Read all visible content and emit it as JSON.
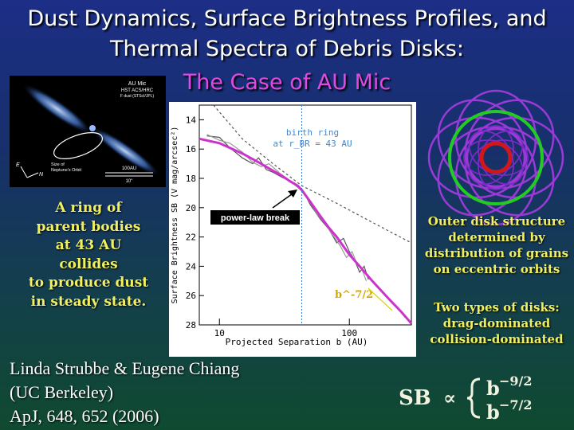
{
  "slide": {
    "title_line1": "Dust Dynamics, Surface Brightness Profiles, and",
    "title_line2": "Thermal Spectra of Debris Disks:",
    "title_line3": "The Case of AU Mic",
    "left_text": [
      "A ring of",
      "parent bodies",
      "at 43 AU",
      "collides",
      "to produce dust",
      "in steady state."
    ],
    "right_text1": [
      "Outer disk structure",
      "determined by",
      "distribution of grains",
      "on eccentric orbits"
    ],
    "right_text2": [
      "Two types of disks:",
      "drag-dominated",
      "collision-dominated"
    ],
    "authors": [
      "Linda Strubbe & Eugene Chiang",
      "(UC Berkeley)",
      "ApJ, 648, 652 (2006)"
    ],
    "formula": {
      "lhs": "SB",
      "prop": "∝",
      "base": "b",
      "exp1": "−9/2",
      "exp2": "−7/2"
    }
  },
  "hst_image": {
    "label1": "AU Mic",
    "label2": "HST ACS/HRC",
    "label3": "F dust (STScI/JPL)",
    "ellipse_label1": "Size of",
    "ellipse_label2": "Neptune's Orbit",
    "scale_au": "100AU",
    "scale_arcsec": "10\"",
    "compass_e": "E",
    "compass_n": "N"
  },
  "chart_data": {
    "type": "line",
    "xlabel": "Projected Separation b (AU)",
    "ylabel": "Surface Brightness SB (V mag/arcsec²)",
    "x_scale": "log",
    "xlim": [
      7,
      300
    ],
    "ylim": [
      28,
      13
    ],
    "x_ticks": [
      10,
      100
    ],
    "y_ticks": [
      14,
      16,
      18,
      20,
      22,
      24,
      26,
      28
    ],
    "annotations": {
      "birth_ring_line1": "birth ring",
      "birth_ring_line2": "at r_BR = 43 AU",
      "break_label": "power-law break",
      "slope_label": "b^-7/2"
    },
    "birth_ring_au": 43,
    "series": [
      {
        "name": "model",
        "color": "#cc33cc",
        "x": [
          7,
          10,
          15,
          20,
          25,
          30,
          35,
          40,
          43,
          50,
          60,
          70,
          80,
          100,
          120,
          150,
          200,
          250,
          300
        ],
        "y": [
          15.3,
          15.6,
          16.3,
          16.9,
          17.4,
          17.8,
          18.2,
          18.5,
          18.8,
          19.6,
          20.6,
          21.4,
          22.0,
          23.2,
          24.0,
          25.0,
          26.2,
          27.1,
          27.9
        ]
      },
      {
        "name": "observed_1",
        "color": "#555555",
        "x": [
          8,
          10,
          12,
          15,
          18,
          20,
          23,
          26,
          30,
          35,
          40,
          45,
          50,
          60,
          70,
          80,
          90,
          100,
          110,
          120,
          130,
          140
        ],
        "y": [
          15.1,
          15.2,
          15.9,
          16.6,
          17.0,
          16.6,
          17.4,
          17.6,
          17.9,
          18.2,
          18.6,
          19.0,
          19.8,
          20.8,
          21.5,
          22.4,
          22.1,
          23.0,
          23.6,
          24.4,
          24.0,
          24.9
        ]
      },
      {
        "name": "observed_2",
        "color": "#999999",
        "x": [
          8,
          10,
          12,
          15,
          18,
          21,
          24,
          28,
          32,
          38,
          43,
          48,
          55,
          65,
          75,
          85,
          95,
          105,
          115,
          125,
          135
        ],
        "y": [
          15.0,
          15.4,
          15.6,
          16.2,
          16.9,
          17.2,
          17.0,
          17.5,
          18.0,
          18.4,
          18.7,
          19.3,
          20.3,
          21.1,
          21.9,
          22.6,
          23.4,
          23.0,
          23.9,
          24.2,
          25.0
        ]
      },
      {
        "name": "upper_powerlaw",
        "color": "#555555",
        "dashed": true,
        "x": [
          9,
          15,
          25,
          43,
          80,
          150,
          300
        ],
        "y": [
          13.0,
          15.3,
          16.9,
          18.5,
          19.7,
          21.0,
          22.4
        ]
      }
    ]
  }
}
